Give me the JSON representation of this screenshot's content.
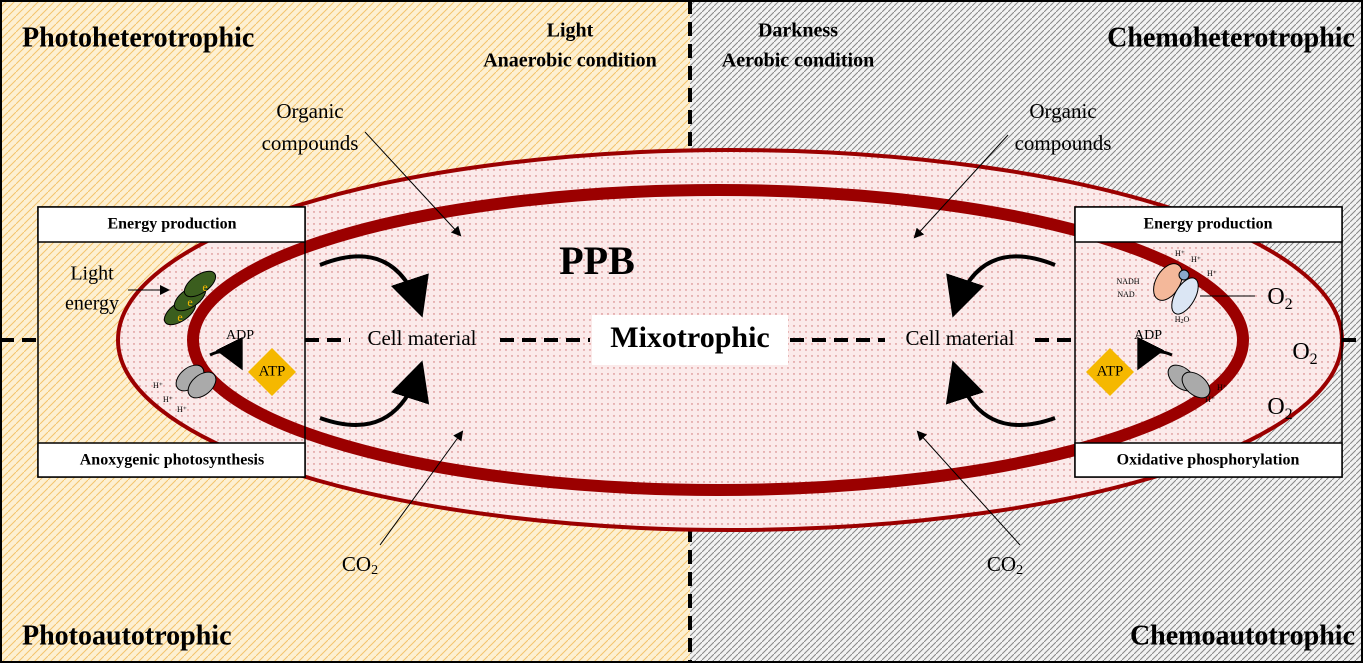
{
  "quadrants": {
    "top_left": "Photoheterotrophic",
    "top_right": "Chemoheterotrophic",
    "bottom_left": "Photoautotrophic",
    "bottom_right": "Chemoautotrophic"
  },
  "conditions": {
    "left": [
      "Light",
      "Anaerobic condition"
    ],
    "right": [
      "Darkness",
      "Aerobic condition"
    ]
  },
  "center": {
    "organism": "PPB",
    "mode": "Mixotrophic"
  },
  "left": {
    "organic": [
      "Organic",
      "compounds"
    ],
    "co2": {
      "base": "CO",
      "sub": "2"
    },
    "cell": "Cell material",
    "box": {
      "header": "Energy production",
      "footer": "Anoxygenic photosynthesis",
      "light": [
        "Light",
        "energy"
      ],
      "electrons": [
        "e",
        "e",
        "e"
      ],
      "adp": "ADP",
      "atp": "ATP",
      "protons": [
        "H⁺",
        "H⁺",
        "H⁺"
      ]
    }
  },
  "right": {
    "organic": [
      "Organic",
      "compounds"
    ],
    "co2": {
      "base": "CO",
      "sub": "2"
    },
    "cell": "Cell material",
    "box": {
      "header": "Energy production",
      "footer": "Oxidative phosphorylation",
      "nadh": "NADH",
      "nad": "NAD",
      "protons": [
        "H⁺",
        "H⁺",
        "H⁺",
        "H⁺",
        "H⁺"
      ],
      "water": {
        "base": "H",
        "sub": "2",
        "tail": "O"
      },
      "adp": "ADP",
      "atp": "ATP"
    },
    "oxygen": [
      {
        "base": "O",
        "sub": "2"
      },
      {
        "base": "O",
        "sub": "2"
      },
      {
        "base": "O",
        "sub": "2"
      }
    ]
  }
}
